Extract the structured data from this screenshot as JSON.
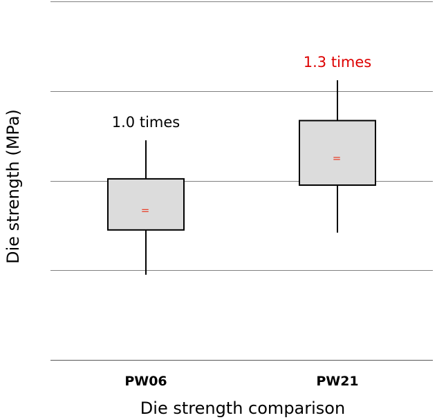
{
  "chart_data": {
    "type": "boxplot",
    "title": "",
    "xlabel": "Die strength comparison",
    "ylabel": "Die strength (MPa)",
    "ylim": [
      0,
      4
    ],
    "grid": true,
    "categories": [
      "PW06",
      "PW21"
    ],
    "boxes": [
      {
        "category": "PW06",
        "whisker_low": 0.95,
        "q1": 1.45,
        "q3": 2.02,
        "whisker_high": 2.45,
        "mean": 1.67,
        "mean_symbol": "=",
        "annotation": "1.0 times",
        "annotation_color": "#000000"
      },
      {
        "category": "PW21",
        "whisker_low": 1.42,
        "q1": 1.95,
        "q3": 2.67,
        "whisker_high": 3.12,
        "mean": 2.25,
        "mean_symbol": "=",
        "annotation": "1.3 times",
        "annotation_color": "#dd0000"
      }
    ]
  },
  "colors": {
    "box_fill": "#dcdcdc",
    "box_stroke": "#000000",
    "grid": "#7f7f7f",
    "mean": "#e8402a"
  }
}
